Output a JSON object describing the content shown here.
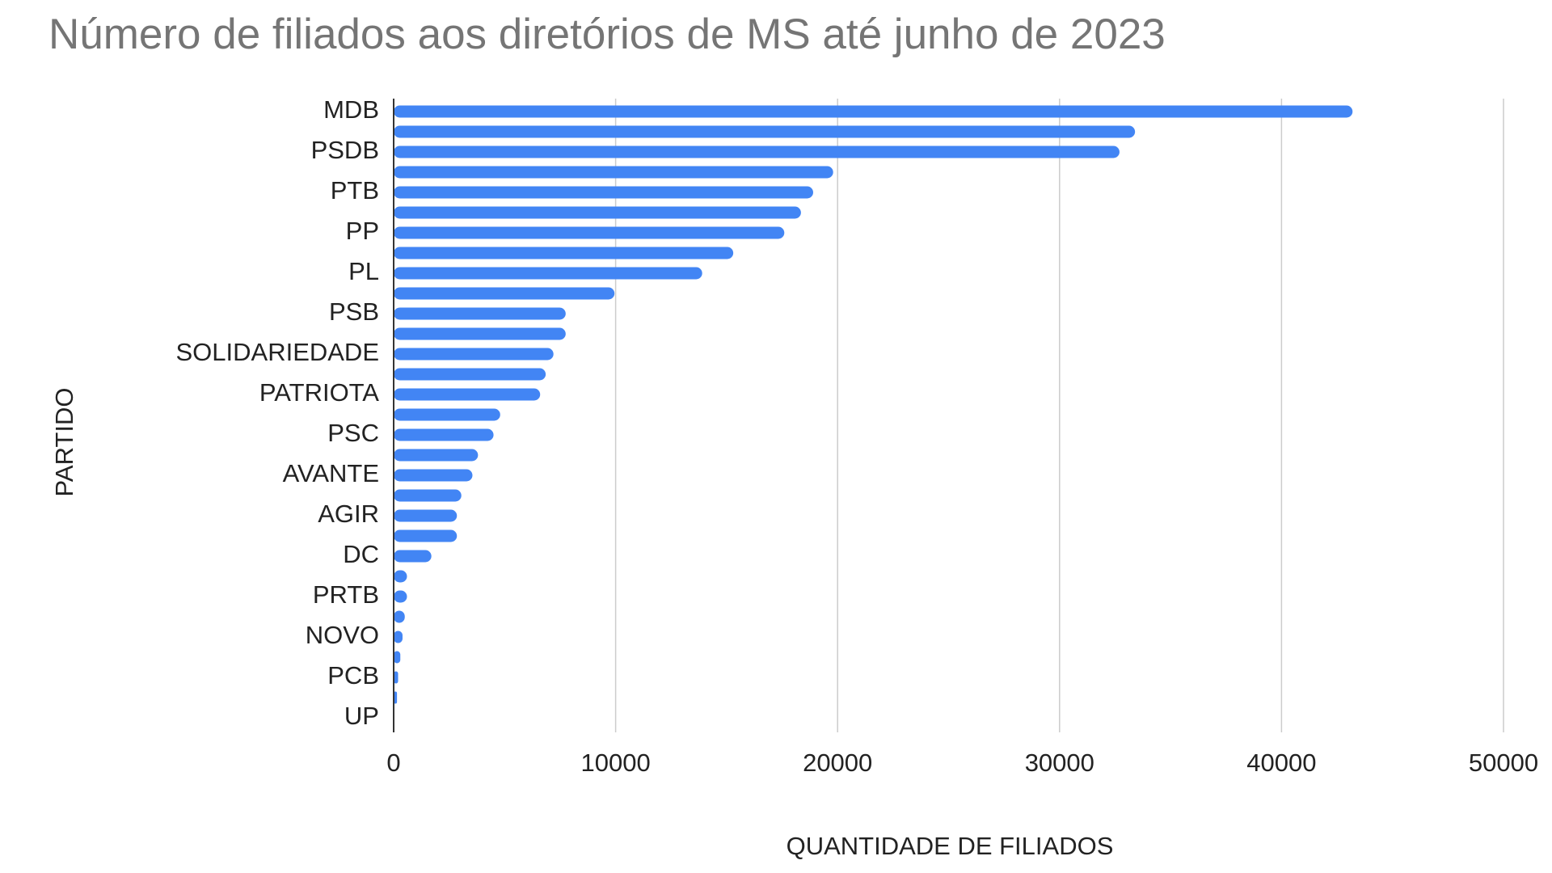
{
  "chart_data": {
    "type": "bar",
    "orientation": "horizontal",
    "title": "Número de filiados aos diretórios de MS até junho de 2023",
    "x_label": "QUANTIDADE DE FILIADOS",
    "y_label": "PARTIDO",
    "categories": [
      "MDB",
      null,
      "PSDB",
      null,
      "PTB",
      null,
      "PP",
      null,
      "PL",
      null,
      "PSB",
      null,
      "SOLIDARIEDADE",
      null,
      "PATRIOTA",
      null,
      "PSC",
      null,
      "AVANTE",
      null,
      "AGIR",
      null,
      "DC",
      null,
      "PRTB",
      null,
      "NOVO",
      null,
      "PCB",
      null,
      "UP"
    ],
    "values": [
      43200,
      33400,
      32700,
      19800,
      18900,
      18350,
      17600,
      15300,
      13900,
      9950,
      7750,
      7750,
      7200,
      6850,
      6600,
      4800,
      4500,
      3800,
      3550,
      3050,
      2850,
      2850,
      1700,
      600,
      600,
      500,
      400,
      300,
      200,
      150,
      0
    ],
    "color": "#4285f4",
    "xlim": [
      0,
      50000
    ],
    "xticks": [
      0,
      10000,
      20000,
      30000,
      40000,
      50000
    ],
    "grid": true
  }
}
